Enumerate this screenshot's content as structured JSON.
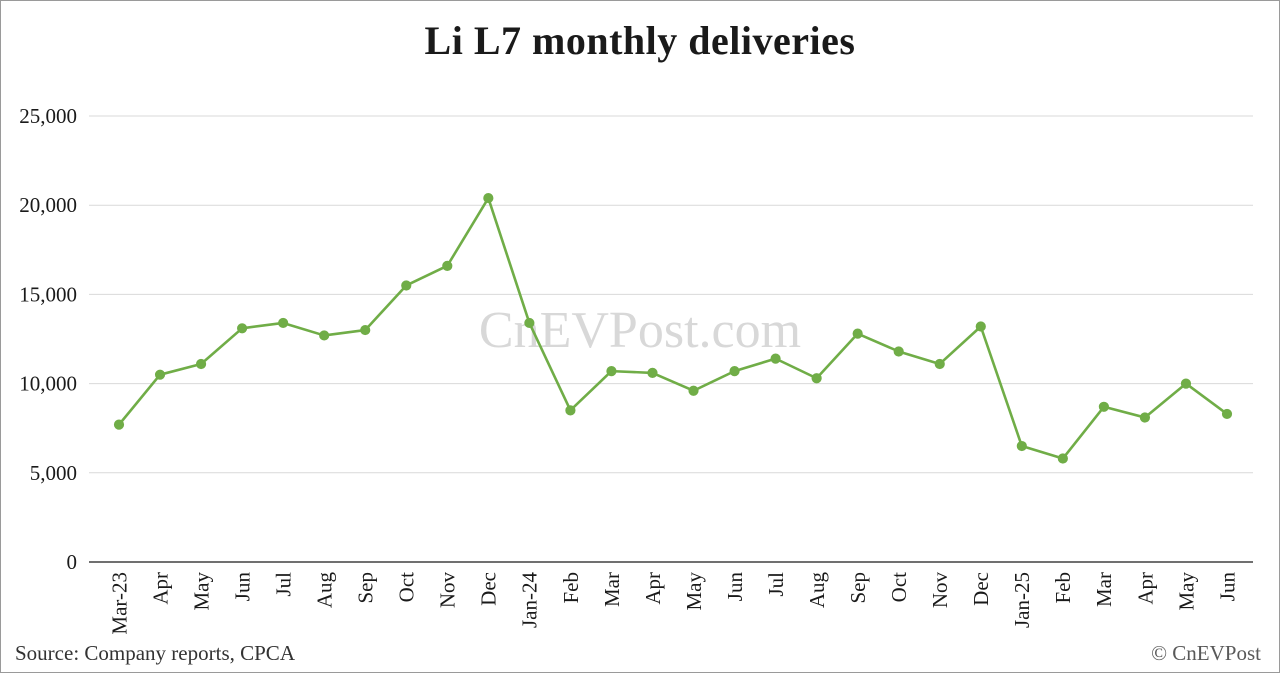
{
  "title": "Li L7 monthly deliveries",
  "watermark": "CnEVPost.com",
  "footer": {
    "source": "Source: Company reports, CPCA",
    "copyright": "© CnEVPost"
  },
  "colors": {
    "line": "#70AD47",
    "marker": "#70AD47",
    "gridline": "#d9d9d9",
    "axis": "#404040",
    "tick_label": "#1a1a1a"
  },
  "chart_data": {
    "type": "line",
    "title": "Li L7 monthly deliveries",
    "categories": [
      "Mar-23",
      "Apr",
      "May",
      "Jun",
      "Jul",
      "Aug",
      "Sep",
      "Oct",
      "Nov",
      "Dec",
      "Jan-24",
      "Feb",
      "Mar",
      "Apr",
      "May",
      "Jun",
      "Jul",
      "Aug",
      "Sep",
      "Oct",
      "Nov",
      "Dec",
      "Jan-25",
      "Feb",
      "Mar",
      "Apr",
      "May",
      "Jun"
    ],
    "values": [
      7700,
      10500,
      11100,
      13100,
      13400,
      12700,
      13000,
      15500,
      16600,
      20400,
      13400,
      8500,
      10700,
      10600,
      9600,
      10700,
      11400,
      10300,
      12800,
      11800,
      11100,
      13200,
      6500,
      5800,
      8700,
      8100,
      10000,
      8300
    ],
    "xlabel": "",
    "ylabel": "",
    "ylim": [
      0,
      25000
    ],
    "yticks": [
      0,
      5000,
      10000,
      15000,
      20000,
      25000
    ],
    "grid": true,
    "legend": "none"
  }
}
